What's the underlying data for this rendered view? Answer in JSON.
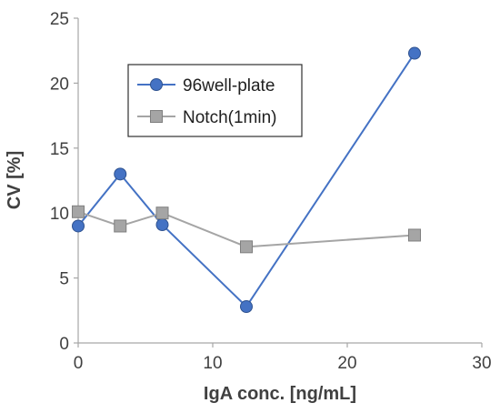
{
  "chart_data": {
    "type": "line",
    "title": "",
    "xlabel": "IgA conc. [ng/mL]",
    "ylabel": "CV [%]",
    "xlim": [
      0,
      30
    ],
    "ylim": [
      0,
      25
    ],
    "x_ticks": [
      0,
      10,
      20,
      30
    ],
    "y_ticks": [
      0,
      5,
      10,
      15,
      20,
      25
    ],
    "grid": false,
    "legend_position": "top-left, inside",
    "series": [
      {
        "name": "96well-plate",
        "marker": "circle",
        "color": "#4472C4",
        "x": [
          0,
          3.125,
          6.25,
          12.5,
          25
        ],
        "y": [
          9.0,
          13.0,
          9.1,
          2.8,
          22.3
        ]
      },
      {
        "name": "Notch(1min)",
        "marker": "square",
        "color": "#A5A5A5",
        "x": [
          0,
          3.125,
          6.25,
          12.5,
          25
        ],
        "y": [
          10.1,
          9.0,
          10.0,
          7.4,
          8.3
        ]
      }
    ]
  }
}
